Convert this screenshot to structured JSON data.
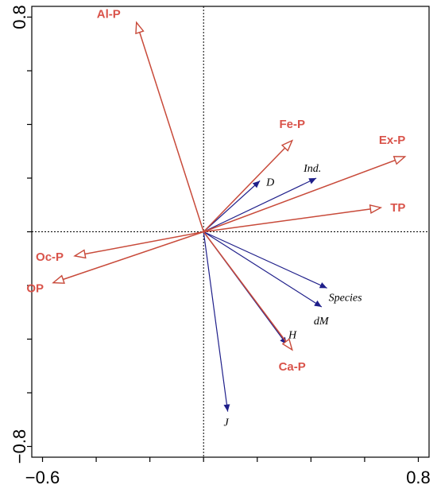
{
  "chart_data": {
    "type": "scatter",
    "subtype": "biplot",
    "title": "",
    "xlabel": "",
    "ylabel": "",
    "xlim": [
      -0.64,
      0.84
    ],
    "ylim": [
      -0.84,
      0.84
    ],
    "x_tick_labels": [
      {
        "value": -0.6,
        "label": "−0.6"
      },
      {
        "value": 0.8,
        "label": "0.8"
      }
    ],
    "y_tick_labels": [
      {
        "value": 0.8,
        "label": "0.8"
      },
      {
        "value": -0.8,
        "label": "−0.8"
      }
    ],
    "reference_lines": {
      "x": 0,
      "y": 0,
      "style": "dotted"
    },
    "env_color": "#c84a3a",
    "env_label_color": "#d9534a",
    "species_color": "#1f1f8a",
    "environmental_vectors": [
      {
        "name": "Al-P",
        "x": -0.25,
        "y": 0.78
      },
      {
        "name": "Fe-P",
        "x": 0.33,
        "y": 0.34
      },
      {
        "name": "Ex-P",
        "x": 0.75,
        "y": 0.28
      },
      {
        "name": "TP",
        "x": 0.66,
        "y": 0.09
      },
      {
        "name": "Oc-P",
        "x": -0.48,
        "y": -0.09
      },
      {
        "name": "OP",
        "x": -0.56,
        "y": -0.19
      },
      {
        "name": "Ca-P",
        "x": 0.33,
        "y": -0.44
      }
    ],
    "species_vectors": [
      {
        "name": "D",
        "x": 0.21,
        "y": 0.19
      },
      {
        "name": "Ind.",
        "x": 0.42,
        "y": 0.2
      },
      {
        "name": "Species",
        "x": 0.46,
        "y": -0.21
      },
      {
        "name": "dM",
        "x": 0.44,
        "y": -0.28
      },
      {
        "name": "H",
        "x": 0.31,
        "y": -0.42
      },
      {
        "name": "J",
        "x": 0.09,
        "y": -0.67
      }
    ]
  }
}
